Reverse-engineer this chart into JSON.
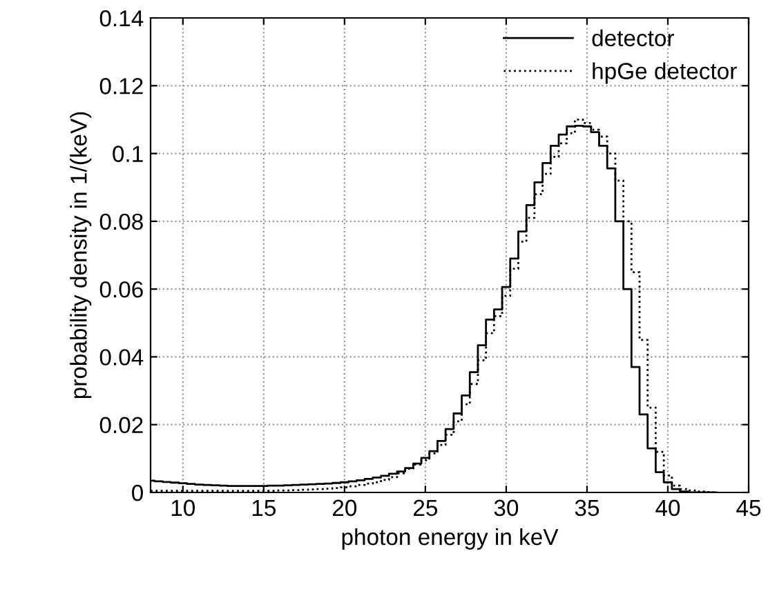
{
  "chart_data": {
    "type": "step",
    "xlabel": "photon energy in keV",
    "ylabel": "probability density in 1/(keV)",
    "xlim": [
      8,
      45
    ],
    "ylim": [
      0,
      0.14
    ],
    "xticks": [
      10,
      15,
      20,
      25,
      30,
      35,
      40,
      45
    ],
    "yticks": [
      0,
      0.02,
      0.04,
      0.06,
      0.08,
      {
        "value": 0.1,
        "label": "0.1"
      },
      0.12,
      0.14
    ],
    "grid": true,
    "legend": "top right",
    "x": [
      8,
      8.5,
      9,
      9.5,
      10,
      10.5,
      11,
      11.5,
      12,
      12.5,
      13,
      13.5,
      14,
      14.5,
      15,
      15.5,
      16,
      16.5,
      17,
      17.5,
      18,
      18.5,
      19,
      19.5,
      20,
      20.5,
      21,
      21.5,
      22,
      22.5,
      23,
      23.5,
      24,
      24.5,
      25,
      25.5,
      26,
      26.5,
      27,
      27.5,
      28,
      28.5,
      29,
      29.5,
      30,
      30.5,
      31,
      31.5,
      32,
      32.5,
      33,
      33.5,
      34,
      34.5,
      35,
      35.5,
      36,
      36.5,
      37,
      37.5,
      38,
      38.5,
      39,
      39.5,
      40,
      40.5,
      41,
      41.5,
      42,
      42.5,
      43
    ],
    "series": [
      {
        "name": "detector",
        "color": "#000000",
        "line_style": "solid",
        "values": [
          0.0035,
          0.0033,
          0.0031,
          0.0029,
          0.0027,
          0.0025,
          0.0023,
          0.0022,
          0.0021,
          0.002,
          0.0019,
          0.0019,
          0.0019,
          0.0019,
          0.0019,
          0.002,
          0.002,
          0.0021,
          0.0022,
          0.0023,
          0.0024,
          0.0025,
          0.0026,
          0.0028,
          0.003,
          0.0033,
          0.0036,
          0.004,
          0.0044,
          0.0049,
          0.0055,
          0.0062,
          0.0072,
          0.0085,
          0.0102,
          0.0122,
          0.0152,
          0.0187,
          0.0233,
          0.0286,
          0.0355,
          0.0434,
          0.051,
          0.054,
          0.0606,
          0.069,
          0.077,
          0.0848,
          0.0915,
          0.0972,
          0.1023,
          0.1056,
          0.108,
          0.1082,
          0.108,
          0.1063,
          0.1023,
          0.0956,
          0.08,
          0.06,
          0.037,
          0.023,
          0.013,
          0.006,
          0.003,
          0.001,
          0.0003,
          0,
          0,
          0,
          0
        ]
      },
      {
        "name": "hpGe detector",
        "color": "#000000",
        "line_style": "dotted",
        "values": [
          0.0005,
          0.0005,
          0.0005,
          0.0005,
          0.0005,
          0.0005,
          0.0005,
          0.0005,
          0.0005,
          0.0005,
          0.0005,
          0.0005,
          0.0005,
          0.0005,
          0.0005,
          0.0005,
          0.0006,
          0.0006,
          0.0007,
          0.0008,
          0.0009,
          0.001,
          0.0011,
          0.0013,
          0.0015,
          0.0018,
          0.0022,
          0.0026,
          0.003,
          0.0037,
          0.0045,
          0.0056,
          0.007,
          0.0082,
          0.0095,
          0.0115,
          0.014,
          0.017,
          0.021,
          0.026,
          0.032,
          0.039,
          0.047,
          0.052,
          0.058,
          0.066,
          0.074,
          0.081,
          0.088,
          0.094,
          0.099,
          0.103,
          0.106,
          0.11,
          0.109,
          0.107,
          0.105,
          0.1,
          0.092,
          0.08,
          0.065,
          0.045,
          0.025,
          0.012,
          0.005,
          0.002,
          0.001,
          0.0006,
          0.0003,
          0.0001,
          0
        ]
      }
    ]
  }
}
